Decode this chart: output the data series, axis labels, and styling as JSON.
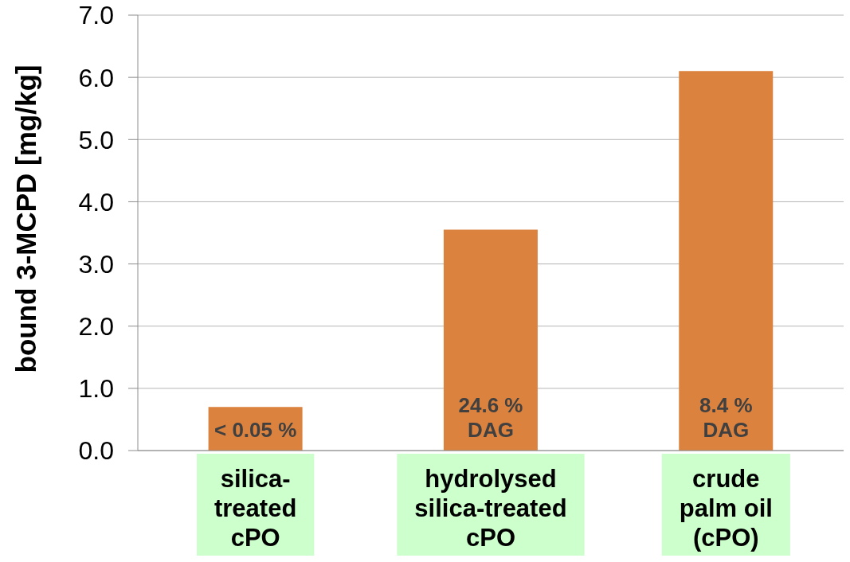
{
  "chart_data": {
    "type": "bar",
    "ylabel": "bound 3-MCPD [mg/kg]",
    "categories": [
      "silica-\ntreated\ncPO",
      "hydrolysed\nsilica-treated\ncPO",
      "crude\npalm oil\n(cPO)"
    ],
    "values": [
      0.7,
      3.55,
      6.1
    ],
    "color": "#db823e",
    "ylim": [
      0,
      7
    ],
    "yticks": [
      {
        "value": 0,
        "label": "0.0"
      },
      {
        "value": 1,
        "label": "1.0"
      },
      {
        "value": 2,
        "label": "2.0"
      },
      {
        "value": 3,
        "label": "3.0"
      },
      {
        "value": 4,
        "label": "4.0"
      },
      {
        "value": 5,
        "label": "5.0"
      },
      {
        "value": 6,
        "label": "6.0"
      },
      {
        "value": 7,
        "label": "7.0"
      }
    ],
    "grid": "y",
    "annotations": [
      "< 0.05 %",
      "24.6 %\nDAG",
      "8.4 %\nDAG"
    ]
  }
}
